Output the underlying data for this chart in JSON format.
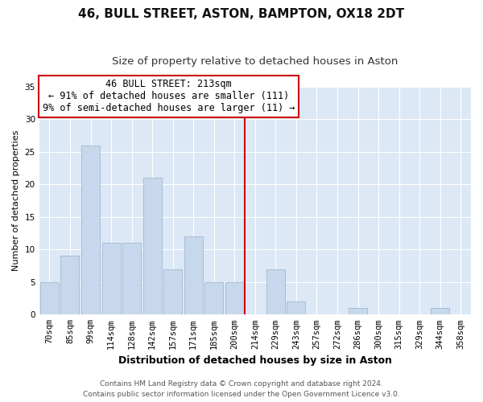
{
  "title": "46, BULL STREET, ASTON, BAMPTON, OX18 2DT",
  "subtitle": "Size of property relative to detached houses in Aston",
  "xlabel": "Distribution of detached houses by size in Aston",
  "ylabel": "Number of detached properties",
  "bin_labels": [
    "70sqm",
    "85sqm",
    "99sqm",
    "114sqm",
    "128sqm",
    "142sqm",
    "157sqm",
    "171sqm",
    "185sqm",
    "200sqm",
    "214sqm",
    "229sqm",
    "243sqm",
    "257sqm",
    "272sqm",
    "286sqm",
    "300sqm",
    "315sqm",
    "329sqm",
    "344sqm",
    "358sqm"
  ],
  "bar_heights": [
    5,
    9,
    26,
    11,
    11,
    21,
    7,
    12,
    5,
    5,
    0,
    7,
    2,
    0,
    0,
    1,
    0,
    0,
    0,
    1,
    0
  ],
  "bar_color": "#c8d8ec",
  "bar_edge_color": "#a0b8d0",
  "vline_x_index": 10,
  "vline_color": "#cc0000",
  "ylim": [
    0,
    35
  ],
  "yticks": [
    0,
    5,
    10,
    15,
    20,
    25,
    30,
    35
  ],
  "annotation_title": "46 BULL STREET: 213sqm",
  "annotation_line1": "← 91% of detached houses are smaller (111)",
  "annotation_line2": "9% of semi-detached houses are larger (11) →",
  "annotation_box_color": "#ffffff",
  "annotation_box_edge": "#cc0000",
  "footer_line1": "Contains HM Land Registry data © Crown copyright and database right 2024.",
  "footer_line2": "Contains public sector information licensed under the Open Government Licence v3.0.",
  "title_fontsize": 11,
  "subtitle_fontsize": 9.5,
  "xlabel_fontsize": 9,
  "ylabel_fontsize": 8,
  "tick_fontsize": 7.5,
  "footer_fontsize": 6.5,
  "annotation_fontsize": 8.5,
  "background_color": "#ffffff",
  "plot_bg_color": "#dce8f5"
}
